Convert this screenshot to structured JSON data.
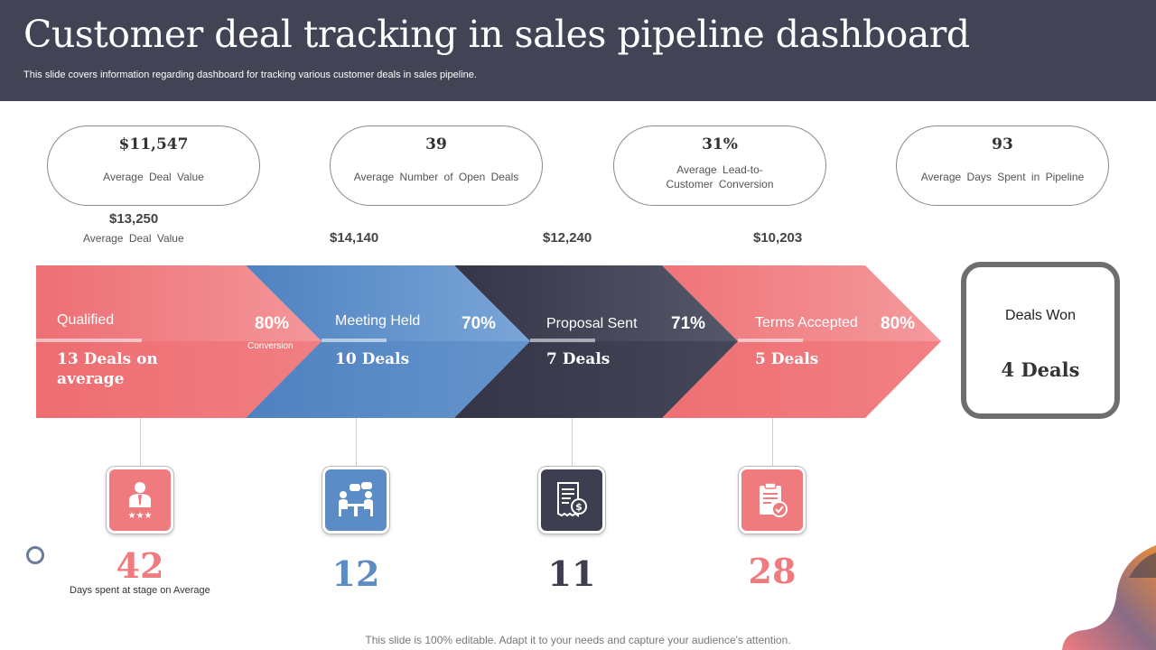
{
  "header": {
    "title": "Customer deal tracking in sales pipeline dashboard",
    "subtitle": "This slide covers information regarding dashboard for tracking various customer deals in sales pipeline."
  },
  "kpis": [
    {
      "value": "$11,547",
      "label": "Average Deal Value"
    },
    {
      "value": "39",
      "label": "Average Number of Open Deals"
    },
    {
      "value": "31%",
      "label": "Average Lead-to-Customer Conversion"
    },
    {
      "value": "93",
      "label": "Average Days Spent in Pipeline"
    }
  ],
  "deal_values": {
    "first": {
      "value": "$13,250",
      "label": "Average Deal Value"
    },
    "second": "$14,140",
    "third": "$12,240",
    "fourth": "$10,203"
  },
  "stages": [
    {
      "name": "Qualified",
      "pct": "80%",
      "deals": "13 Deals on average",
      "color": "#ee7378"
    },
    {
      "name": "Meeting Held",
      "pct": "70%",
      "deals": "10 Deals",
      "color": "#5b8cc5"
    },
    {
      "name": "Proposal Sent",
      "pct": "71%",
      "deals": "7 Deals",
      "color": "#3d3f51"
    },
    {
      "name": "Terms Accepted",
      "pct": "80%",
      "deals": "5 Deals",
      "color": "#f07f82"
    }
  ],
  "conversion_label": "Conversion",
  "won": {
    "label": "Deals Won",
    "value": "4 Deals"
  },
  "days": [
    {
      "value": "42",
      "color": "#ef7b7f",
      "icon": "rated-employee-icon"
    },
    {
      "value": "12",
      "color": "#5b8cc5",
      "icon": "meeting-icon"
    },
    {
      "value": "11",
      "color": "#3d3f51",
      "icon": "invoice-icon"
    },
    {
      "value": "28",
      "color": "#ef7b7f",
      "icon": "approved-document-icon"
    }
  ],
  "days_label": "Days spent at stage on Average",
  "footer": "This slide is 100% editable. Adapt it to your needs and capture your audience's attention."
}
